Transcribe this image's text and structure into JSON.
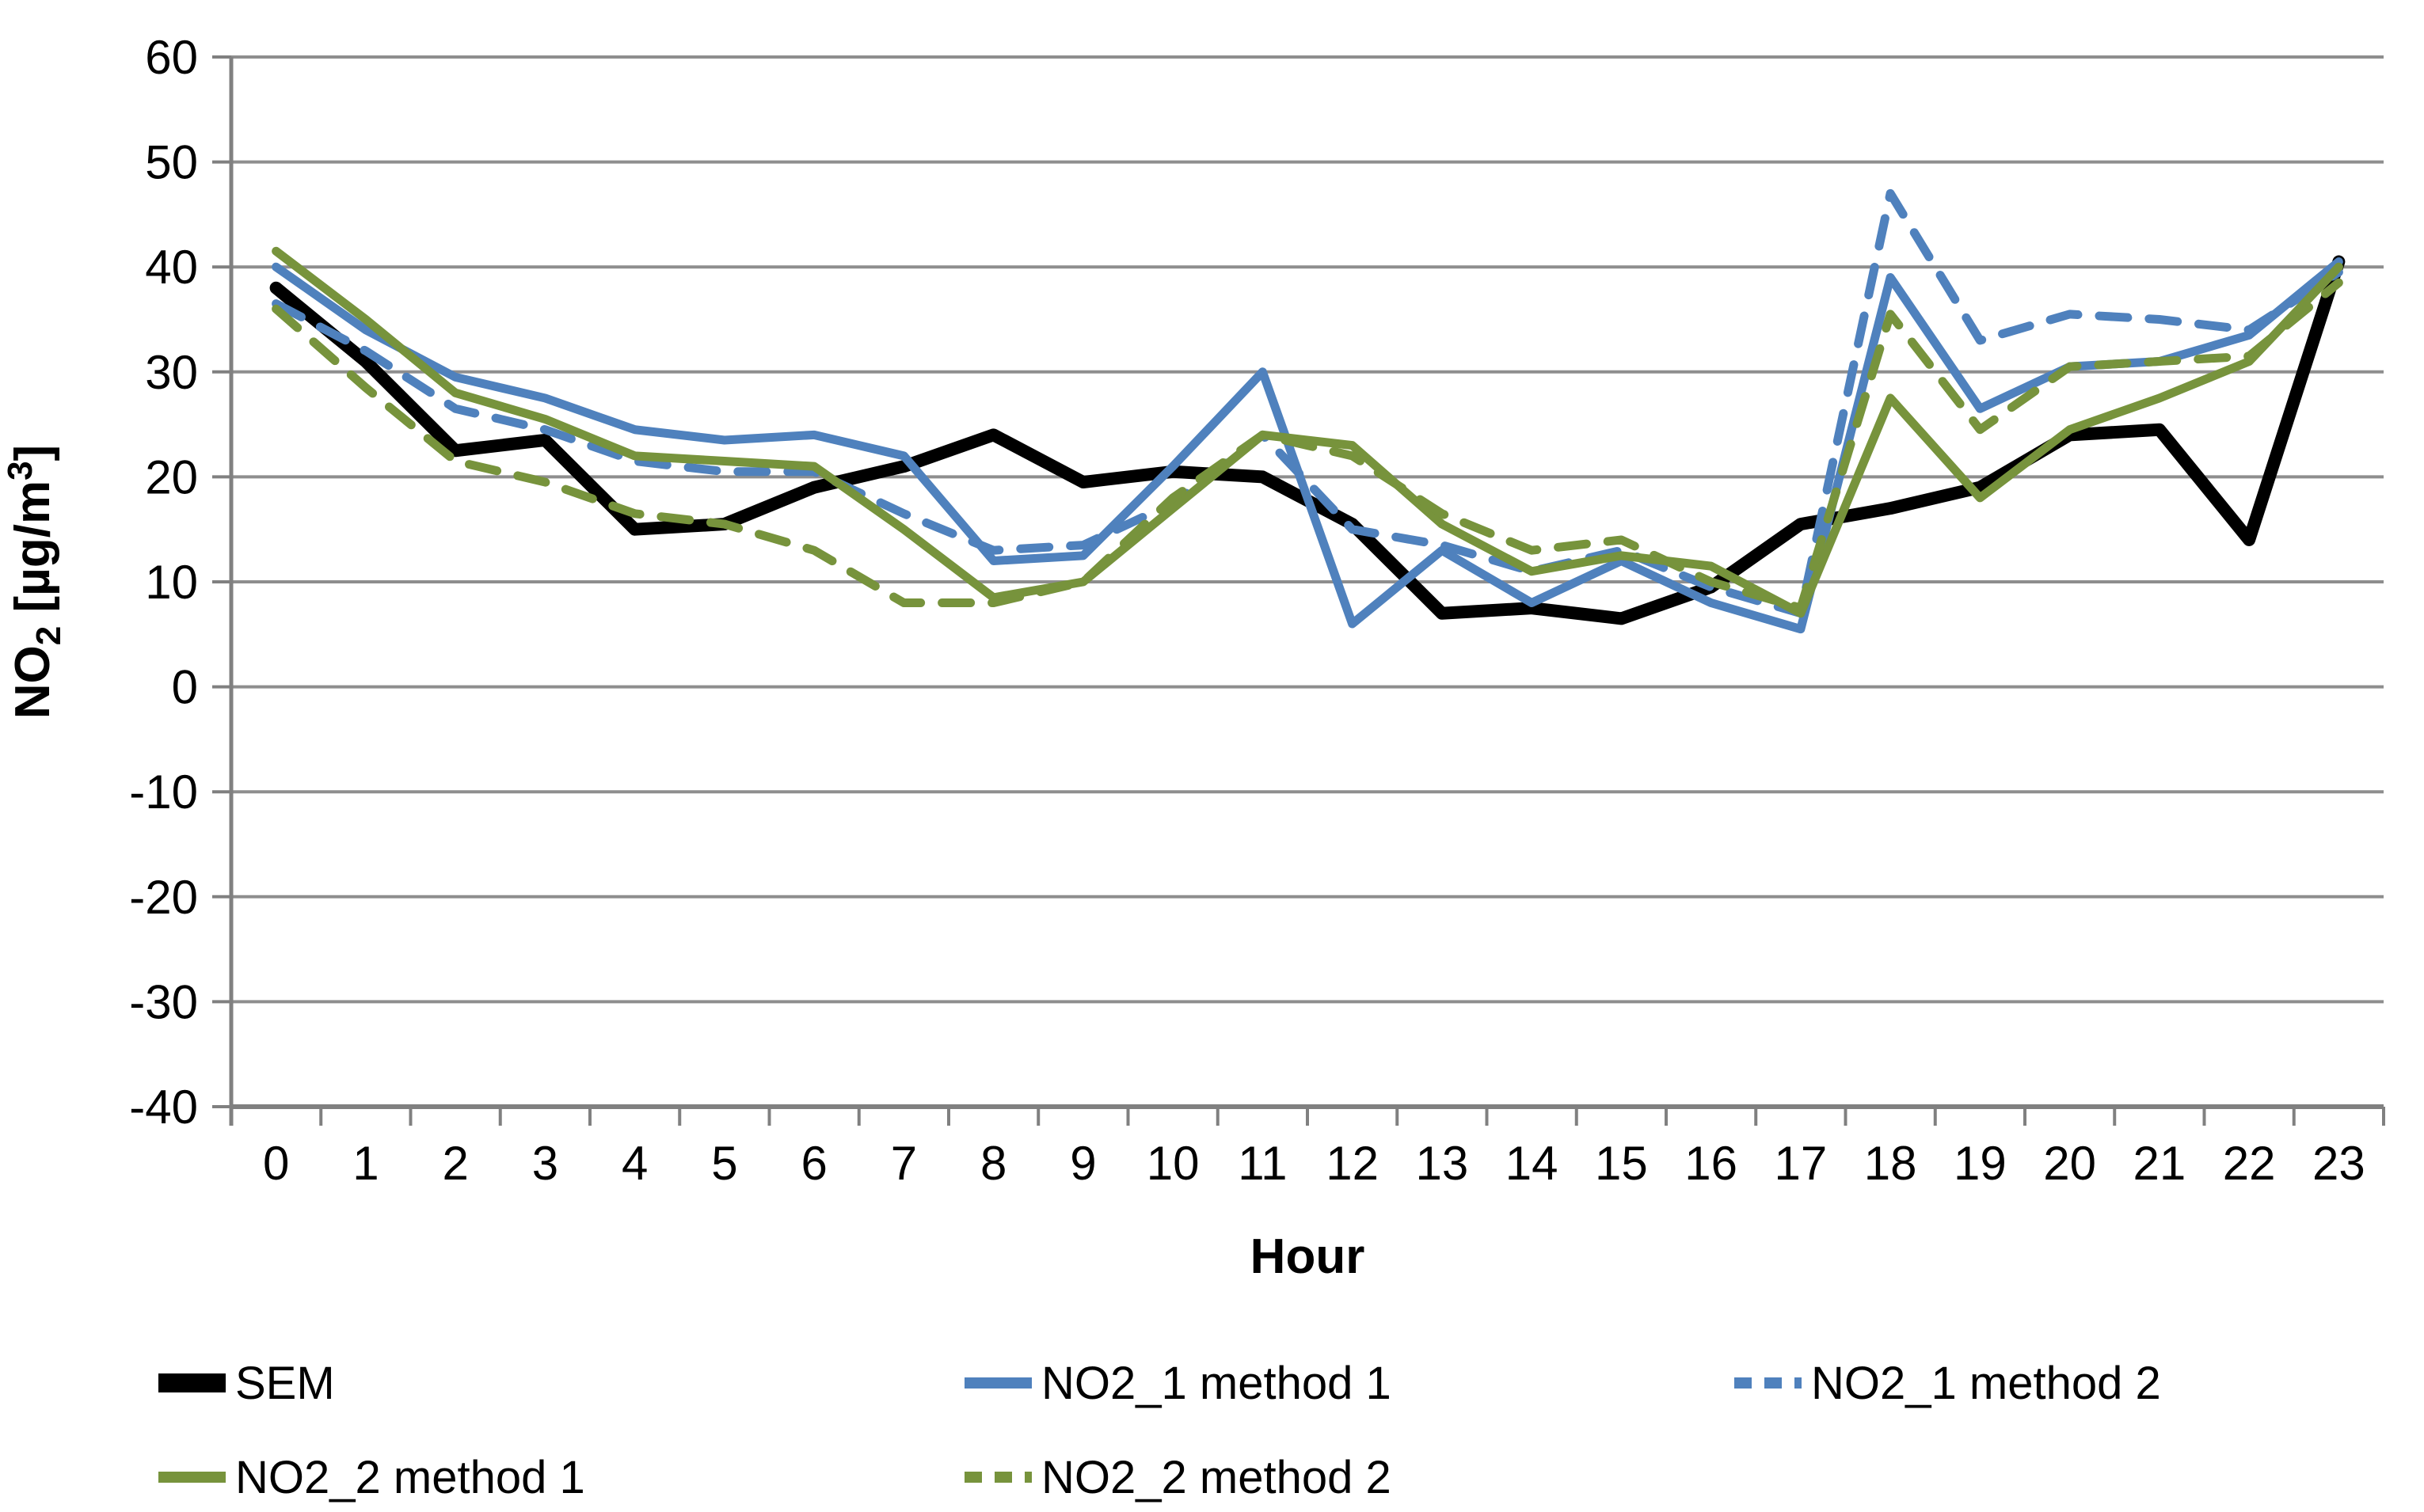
{
  "chart_data": {
    "type": "line",
    "title": "",
    "xlabel": "Hour",
    "ylabel_parts": {
      "main": "NO",
      "sub": "2",
      "mid": " [µg/m",
      "sup": "3",
      "end": "]"
    },
    "categories": [
      "0",
      "1",
      "2",
      "3",
      "4",
      "5",
      "6",
      "7",
      "8",
      "9",
      "10",
      "11",
      "12",
      "13",
      "14",
      "15",
      "16",
      "17",
      "18",
      "19",
      "20",
      "21",
      "22",
      "23"
    ],
    "ylim": [
      -40,
      60
    ],
    "ytick_step": 10,
    "yticks": [
      "60",
      "50",
      "40",
      "30",
      "20",
      "10",
      "0",
      "-10",
      "-20",
      "-30",
      "-40"
    ],
    "grid": true,
    "legend_position": "bottom",
    "axis_color": "#808080",
    "grid_color": "#8E8E8E",
    "text_color": "#000000",
    "series": [
      {
        "name": "SEM",
        "color": "#000000",
        "dashed": false,
        "width": 16,
        "values": [
          38,
          31,
          22.5,
          23.5,
          15,
          15.5,
          19,
          21,
          24,
          19.5,
          20.5,
          20,
          15.5,
          7,
          7.5,
          6.5,
          9.5,
          15.5,
          17,
          19,
          24,
          24.5,
          14,
          40.5
        ]
      },
      {
        "name": "NO2_1 method 1",
        "color": "#4F81BD",
        "dashed": false,
        "width": 11,
        "values": [
          40,
          34,
          29.5,
          27.5,
          24.5,
          23.5,
          24,
          22,
          12,
          12.5,
          21,
          30,
          6,
          13,
          8,
          12,
          8,
          5.5,
          39,
          26.5,
          30.5,
          31,
          33.5,
          40.5
        ]
      },
      {
        "name": "NO2_1 method 2",
        "color": "#4F81BD",
        "dashed": true,
        "width": 11,
        "values": [
          36.5,
          32,
          26.5,
          24.5,
          21.5,
          20.5,
          20.5,
          16.5,
          13,
          13.5,
          17.5,
          24,
          15,
          13.5,
          11,
          13,
          9.5,
          7,
          47,
          33,
          35.5,
          35,
          34,
          39.5
        ]
      },
      {
        "name": "NO2_2 method 1",
        "color": "#77933C",
        "dashed": false,
        "width": 11,
        "values": [
          41.5,
          35,
          28,
          25.5,
          22,
          21.5,
          21,
          15,
          8.5,
          10,
          17,
          24,
          23,
          15.5,
          11,
          12.5,
          11.5,
          7,
          27.5,
          18,
          24.5,
          27.5,
          31,
          40
        ]
      },
      {
        "name": "NO2_2 method 2",
        "color": "#77933C",
        "dashed": true,
        "width": 11,
        "values": [
          36,
          28.5,
          21.5,
          19.5,
          16.5,
          15.5,
          13,
          8,
          8,
          10,
          18,
          24,
          22,
          16.5,
          13,
          14,
          10,
          7.5,
          35.5,
          24.5,
          30.5,
          31,
          31.5,
          38.5
        ]
      }
    ]
  }
}
